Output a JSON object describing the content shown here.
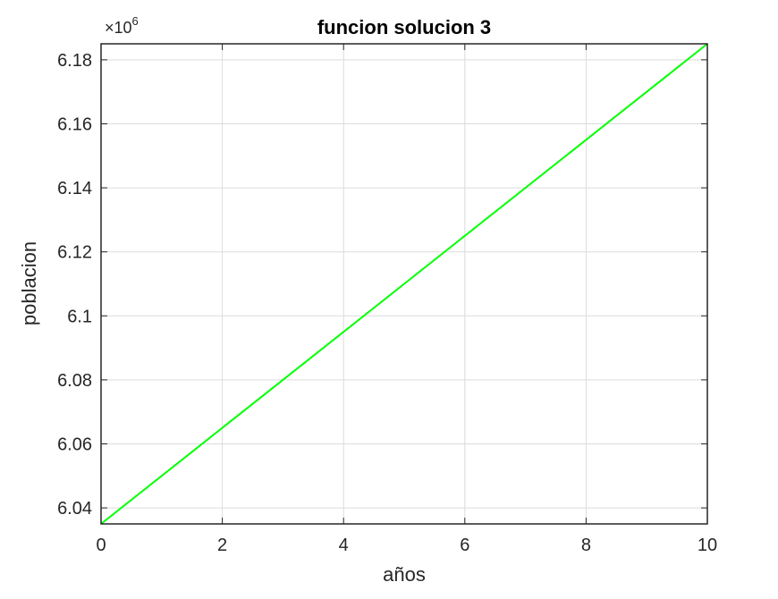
{
  "chart_data": {
    "type": "line",
    "title": "funcion solucion 3",
    "xlabel": "años",
    "ylabel": "poblacion",
    "exponent_label": {
      "base": "×10",
      "power": "6"
    },
    "xlim": [
      0,
      10
    ],
    "ylim": [
      6.035,
      6.185
    ],
    "xticks": [
      0,
      2,
      4,
      6,
      8,
      10
    ],
    "xtick_labels": [
      "0",
      "2",
      "4",
      "6",
      "8",
      "10"
    ],
    "yticks": [
      6.04,
      6.06,
      6.08,
      6.1,
      6.12,
      6.14,
      6.16,
      6.18
    ],
    "ytick_labels": [
      "6.04",
      "6.06",
      "6.08",
      "6.1",
      "6.12",
      "6.14",
      "6.16",
      "6.18"
    ],
    "grid": true,
    "series": [
      {
        "color": "#00ff00",
        "x": [
          0,
          10
        ],
        "y": [
          6.035,
          6.185
        ]
      }
    ]
  },
  "colors": {
    "line": "#00ff00",
    "axes": "#262626",
    "grid": "#dcdcdc"
  }
}
